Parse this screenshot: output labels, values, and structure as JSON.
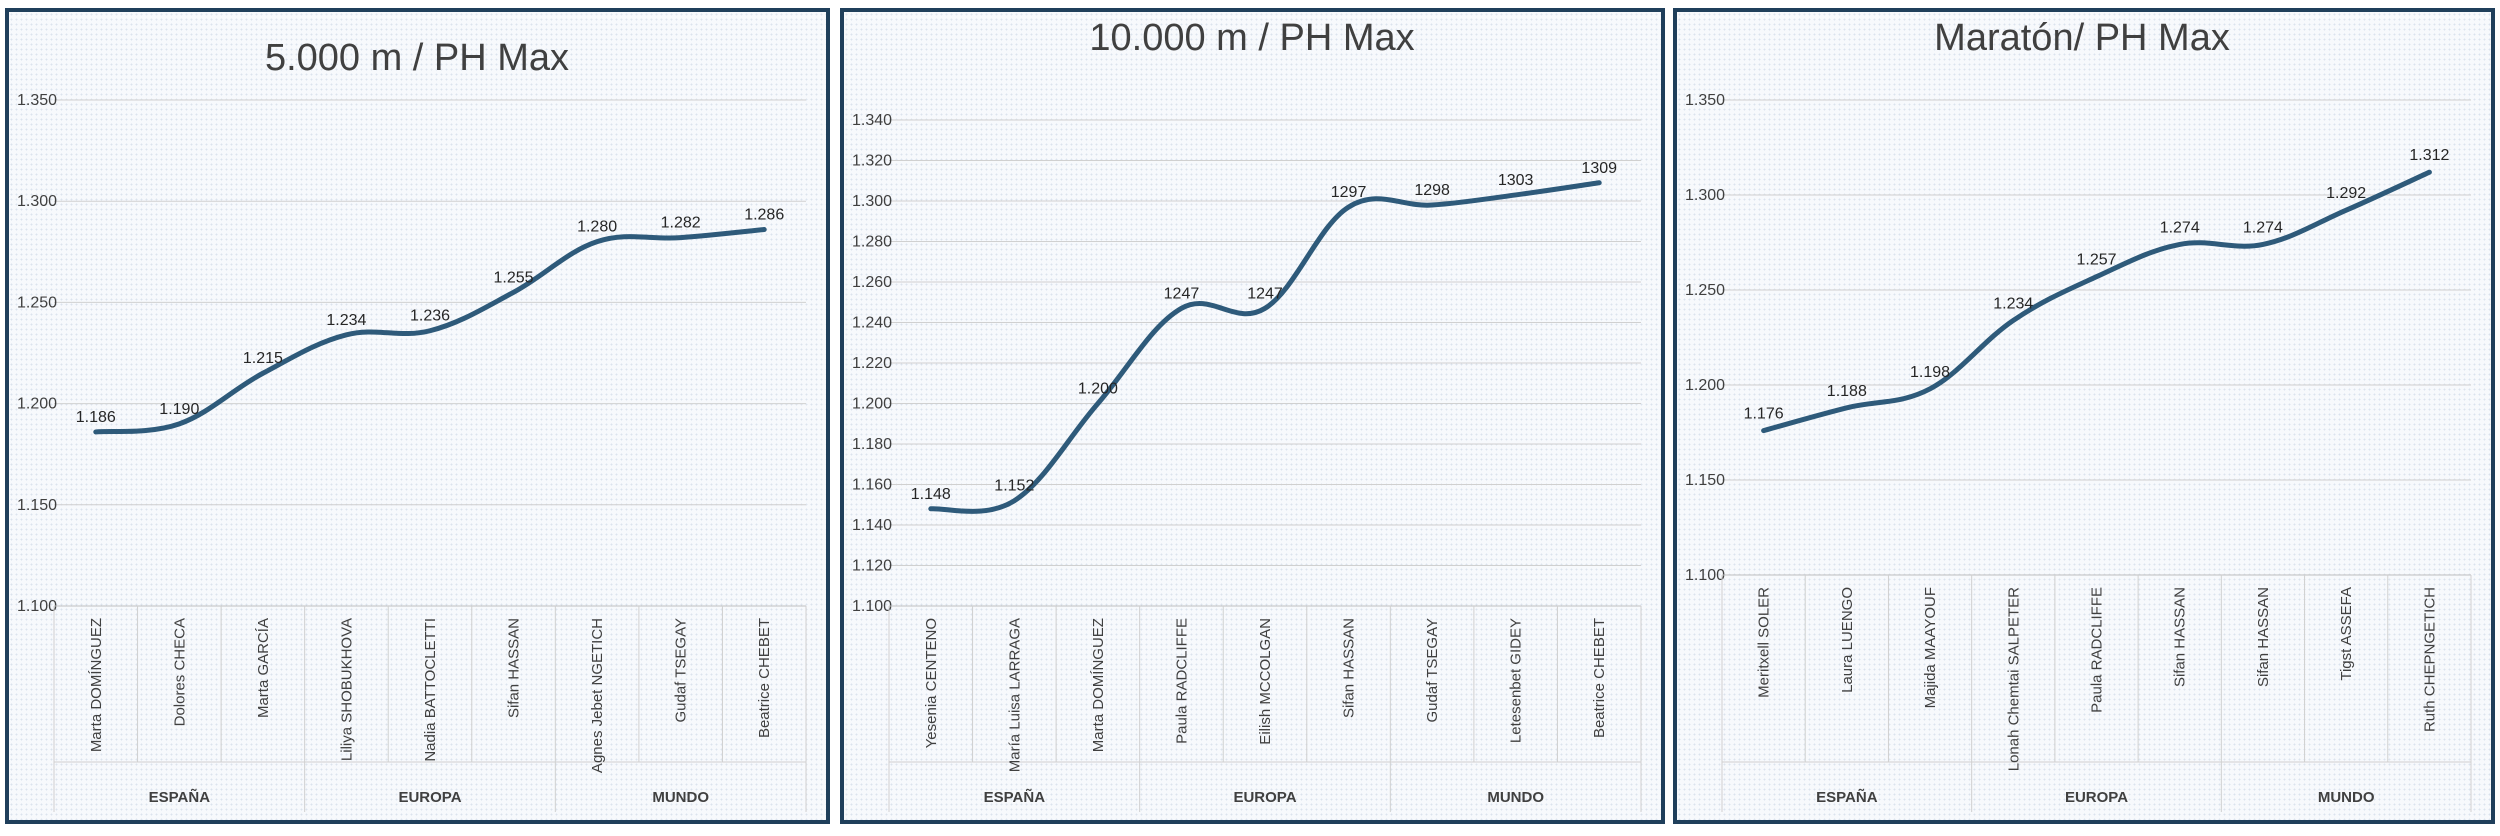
{
  "chart_data": [
    {
      "type": "line",
      "title": "5.000 m / PH Max",
      "ylim": [
        1.1,
        1.35
      ],
      "yticks": [
        "1.100",
        "1.150",
        "1.200",
        "1.250",
        "1.300",
        "1.350"
      ],
      "categories": [
        "Marta DOMÍNGUEZ",
        "Dolores CHECA",
        "Marta GARCÍA",
        "Liliya SHOBUKHOVA",
        "Nadia BATTOCLETTI",
        "Sifan HASSAN",
        "Agnes Jebet NGETICH",
        "Gudaf TSEGAY",
        "Beatrice CHEBET"
      ],
      "groups": [
        "ESPAÑA",
        "EUROPA",
        "MUNDO"
      ],
      "values": [
        1.186,
        1.19,
        1.215,
        1.234,
        1.236,
        1.255,
        1.28,
        1.282,
        1.286
      ],
      "labels": [
        "1.186",
        "1.190",
        "1.215",
        "1.234",
        "1.236",
        "1.255",
        "1.280",
        "1.282",
        "1.286"
      ],
      "line_color": "#2e5a7a"
    },
    {
      "type": "line",
      "title": "10.000 m / PH Max",
      "ylim": [
        1.1,
        1.34
      ],
      "yticks": [
        "1.100",
        "1.120",
        "1.140",
        "1.160",
        "1.180",
        "1.200",
        "1.220",
        "1.240",
        "1.260",
        "1.280",
        "1.300",
        "1.320",
        "1.340"
      ],
      "categories": [
        "Yesenia CENTENO",
        "María Luisa LARRAGA",
        "Marta DOMÍNGUEZ",
        "Paula RADCLIFFE",
        "Eilish MCCOLGAN",
        "Sifan HASSAN",
        "Gudaf TSEGAY",
        "Letesenbet GIDEY",
        "Beatrice CHEBET"
      ],
      "groups": [
        "ESPAÑA",
        "EUROPA",
        "MUNDO"
      ],
      "values": [
        1.148,
        1.152,
        1.2,
        1.247,
        1.247,
        1.297,
        1.298,
        1.303,
        1.309
      ],
      "labels": [
        "1.148",
        "1.152",
        "1.200",
        "1247",
        "1247",
        "1297",
        "1298",
        "1303",
        "1309"
      ],
      "line_color": "#2e5a7a"
    },
    {
      "type": "line",
      "title": "Maratón/ PH Max",
      "ylim": [
        1.1,
        1.35
      ],
      "yticks": [
        "1.100",
        "1.150",
        "1.200",
        "1.250",
        "1.300",
        "1.350"
      ],
      "categories": [
        "Meritxell SOLER",
        "Laura LUENGO",
        "Majida MAAYOUF",
        "Lonah Chemtai SALPETER",
        "Paula RADCLIFFE",
        "Sifan HASSAN",
        "Sifan HASSAN",
        "Tigst ASSEFA",
        "Ruth CHEPNGETICH"
      ],
      "groups": [
        "ESPAÑA",
        "EUROPA",
        "MUNDO"
      ],
      "values": [
        1.176,
        1.188,
        1.198,
        1.234,
        1.257,
        1.274,
        1.274,
        1.292,
        1.312
      ],
      "labels": [
        "1.176",
        "1.188",
        "1.198",
        "1.234",
        "1.257",
        "1.274",
        "1.274",
        "1.292",
        "1.312"
      ],
      "line_color": "#2e5a7a"
    }
  ]
}
